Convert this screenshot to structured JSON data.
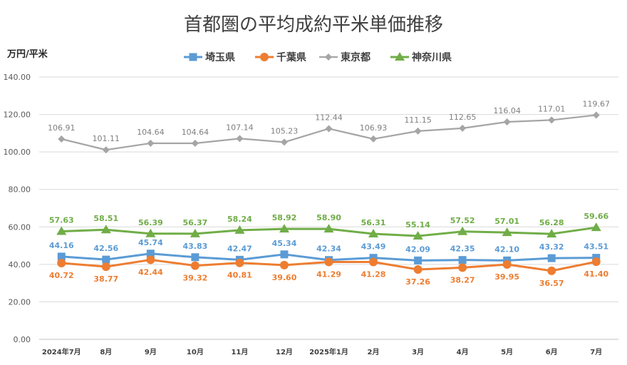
{
  "chart_data": {
    "type": "line",
    "title": "首都圏の平均成約平米単価推移",
    "ylabel": "万円/平米",
    "xlabel": "",
    "ylim": [
      0,
      140
    ],
    "yticks": [
      "0.00",
      "20.00",
      "40.00",
      "60.00",
      "80.00",
      "100.00",
      "120.00",
      "140.00"
    ],
    "grid": true,
    "legend_position": "top",
    "categories": [
      "2024年7月",
      "8月",
      "9月",
      "10月",
      "11月",
      "12月",
      "2025年1月",
      "2月",
      "3月",
      "4月",
      "5月",
      "6月",
      "7月"
    ],
    "series": [
      {
        "name": "埼玉県",
        "color": "#5B9BD5",
        "marker": "square",
        "label_position": "above",
        "values": [
          44.16,
          42.56,
          45.74,
          43.83,
          42.47,
          45.34,
          42.34,
          43.49,
          42.09,
          42.35,
          42.1,
          43.32,
          43.51
        ],
        "labels": [
          "44.16",
          "42.56",
          "45.74",
          "43.83",
          "42.47",
          "45.34",
          "42.34",
          "43.49",
          "42.09",
          "42.35",
          "42.10",
          "43.32",
          "43.51"
        ]
      },
      {
        "name": "千葉県",
        "color": "#ED7D31",
        "marker": "circle",
        "label_position": "below",
        "values": [
          40.72,
          38.77,
          42.44,
          39.32,
          40.81,
          39.6,
          41.29,
          41.28,
          37.26,
          38.27,
          39.95,
          36.57,
          41.4
        ],
        "labels": [
          "40.72",
          "38.77",
          "42.44",
          "39.32",
          "40.81",
          "39.60",
          "41.29",
          "41.28",
          "37.26",
          "38.27",
          "39.95",
          "36.57",
          "41.40"
        ]
      },
      {
        "name": "東京都",
        "color": "#A5A5A5",
        "marker": "diamond",
        "label_position": "above",
        "values": [
          106.91,
          101.11,
          104.64,
          104.64,
          107.14,
          105.23,
          112.44,
          106.93,
          111.15,
          112.65,
          116.04,
          117.01,
          119.67
        ],
        "labels": [
          "106.91",
          "101.11",
          "104.64",
          "104.64",
          "107.14",
          "105.23",
          "112.44",
          "106.93",
          "111.15",
          "112.65",
          "116.04",
          "117.01",
          "119.67"
        ]
      },
      {
        "name": "神奈川県",
        "color": "#70AD47",
        "marker": "triangle",
        "label_position": "above",
        "values": [
          57.63,
          58.51,
          56.39,
          56.37,
          58.24,
          58.92,
          58.9,
          56.31,
          55.14,
          57.52,
          57.01,
          56.28,
          59.66
        ],
        "labels": [
          "57.63",
          "58.51",
          "56.39",
          "56.37",
          "58.24",
          "58.92",
          "58.90",
          "56.31",
          "55.14",
          "57.52",
          "57.01",
          "56.28",
          "59.66"
        ]
      }
    ]
  }
}
